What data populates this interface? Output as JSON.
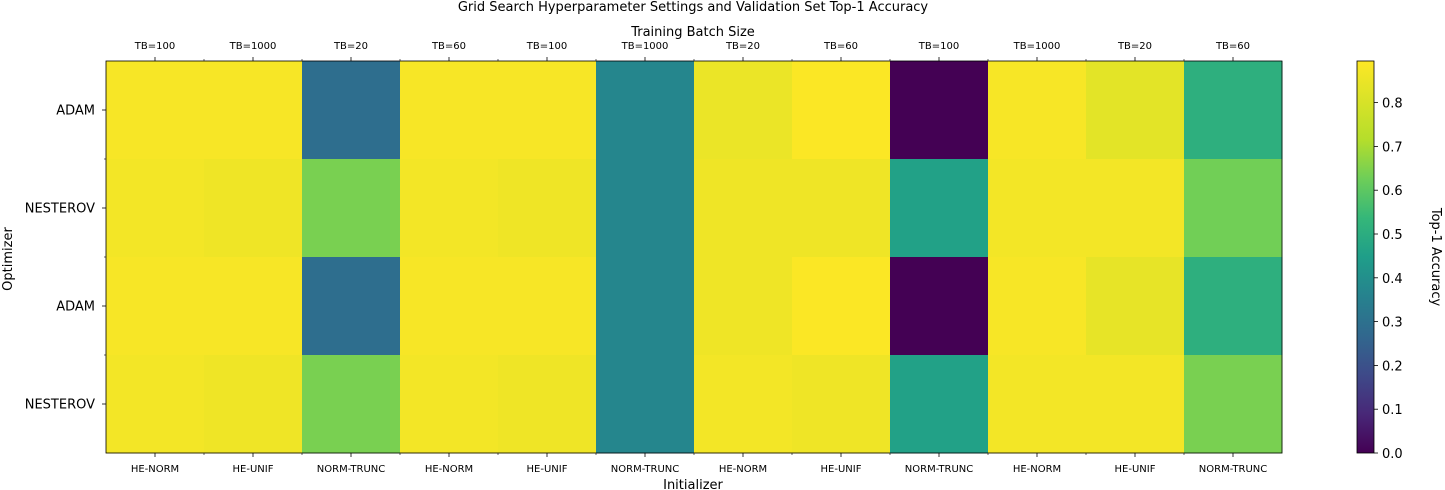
{
  "chart_data": {
    "type": "heatmap",
    "title": "Grid Search Hyperparameter Settings and Validation Set Top-1 Accuracy",
    "xlabel": "Initializer",
    "x2label": "Training Batch Size",
    "ylabel": "Optimizer",
    "colorbar_label": "Top-1 Accuracy",
    "colormap": "viridis",
    "vlim": [
      0.0,
      0.895
    ],
    "colorbar_ticks": [
      "0.0",
      "0.1",
      "0.2",
      "0.3",
      "0.4",
      "0.5",
      "0.6",
      "0.7",
      "0.8"
    ],
    "x_categories": [
      "HE-NORM",
      "HE-UNIF",
      "NORM-TRUNC",
      "HE-NORM",
      "HE-UNIF",
      "NORM-TRUNC",
      "HE-NORM",
      "HE-UNIF",
      "NORM-TRUNC",
      "HE-NORM",
      "HE-UNIF",
      "NORM-TRUNC"
    ],
    "x2_categories": [
      "TB=100",
      "TB=1000",
      "TB=20",
      "TB=60",
      "TB=100",
      "TB=1000",
      "TB=20",
      "TB=60",
      "TB=100",
      "TB=1000",
      "TB=20",
      "TB=60"
    ],
    "y_categories": [
      "ADAM",
      "NESTEROV",
      "ADAM",
      "NESTEROV"
    ],
    "values": [
      [
        0.88,
        0.88,
        0.29,
        0.88,
        0.88,
        0.37,
        0.85,
        0.89,
        0.0,
        0.88,
        0.83,
        0.51
      ],
      [
        0.87,
        0.86,
        0.64,
        0.87,
        0.86,
        0.37,
        0.86,
        0.86,
        0.46,
        0.87,
        0.87,
        0.63
      ],
      [
        0.88,
        0.88,
        0.29,
        0.88,
        0.88,
        0.37,
        0.86,
        0.89,
        0.0,
        0.88,
        0.84,
        0.51
      ],
      [
        0.87,
        0.86,
        0.64,
        0.87,
        0.86,
        0.37,
        0.87,
        0.86,
        0.46,
        0.87,
        0.87,
        0.64
      ]
    ]
  }
}
